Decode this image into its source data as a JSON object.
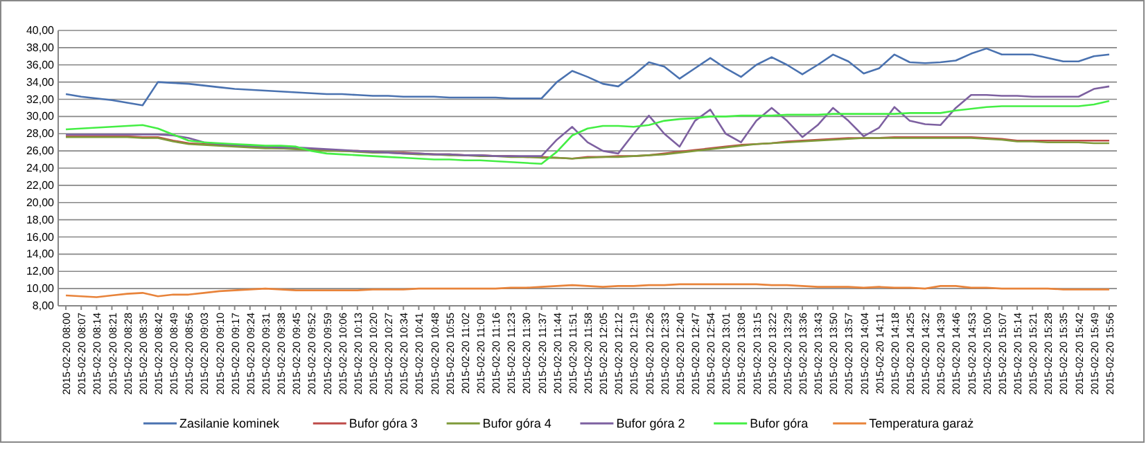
{
  "chart_data": {
    "type": "line",
    "categories": [
      "2015-02-20 08:00",
      "2015-02-20 08:07",
      "2015-02-20 08:14",
      "2015-02-20 08:21",
      "2015-02-20 08:28",
      "2015-02-20 08:35",
      "2015-02-20 08:42",
      "2015-02-20 08:49",
      "2015-02-20 08:56",
      "2015-02-20 09:03",
      "2015-02-20 09:10",
      "2015-02-20 09:17",
      "2015-02-20 09:24",
      "2015-02-20 09:31",
      "2015-02-20 09:38",
      "2015-02-20 09:45",
      "2015-02-20 09:52",
      "2015-02-20 09:59",
      "2015-02-20 10:06",
      "2015-02-20 10:13",
      "2015-02-20 10:20",
      "2015-02-20 10:27",
      "2015-02-20 10:34",
      "2015-02-20 10:41",
      "2015-02-20 10:48",
      "2015-02-20 10:55",
      "2015-02-20 11:02",
      "2015-02-20 11:09",
      "2015-02-20 11:16",
      "2015-02-20 11:23",
      "2015-02-20 11:30",
      "2015-02-20 11:37",
      "2015-02-20 11:44",
      "2015-02-20 11:51",
      "2015-02-20 11:58",
      "2015-02-20 12:05",
      "2015-02-20 12:12",
      "2015-02-20 12:19",
      "2015-02-20 12:26",
      "2015-02-20 12:33",
      "2015-02-20 12:40",
      "2015-02-20 12:47",
      "2015-02-20 12:54",
      "2015-02-20 13:01",
      "2015-02-20 13:08",
      "2015-02-20 13:15",
      "2015-02-20 13:22",
      "2015-02-20 13:29",
      "2015-02-20 13:36",
      "2015-02-20 13:43",
      "2015-02-20 13:50",
      "2015-02-20 13:57",
      "2015-02-20 14:04",
      "2015-02-20 14:11",
      "2015-02-20 14:18",
      "2015-02-20 14:25",
      "2015-02-20 14:32",
      "2015-02-20 14:39",
      "2015-02-20 14:46",
      "2015-02-20 14:53",
      "2015-02-20 15:00",
      "2015-02-20 15:07",
      "2015-02-20 15:14",
      "2015-02-20 15:21",
      "2015-02-20 15:28",
      "2015-02-20 15:35",
      "2015-02-20 15:42",
      "2015-02-20 15:49",
      "2015-02-20 15:56"
    ],
    "series": [
      {
        "name": "Zasilanie kominek",
        "color": "#4a72b0",
        "values": [
          32.6,
          32.3,
          32.1,
          31.9,
          31.6,
          31.3,
          34.0,
          33.9,
          33.8,
          33.6,
          33.4,
          33.2,
          33.1,
          33.0,
          32.9,
          32.8,
          32.7,
          32.6,
          32.6,
          32.5,
          32.4,
          32.4,
          32.3,
          32.3,
          32.3,
          32.2,
          32.2,
          32.2,
          32.2,
          32.1,
          32.1,
          32.1,
          34.0,
          35.3,
          34.6,
          33.8,
          33.5,
          34.8,
          36.3,
          35.8,
          34.4,
          35.6,
          36.8,
          35.6,
          34.6,
          36.0,
          36.9,
          36.0,
          34.9,
          36.0,
          37.2,
          36.4,
          35.0,
          35.6,
          37.2,
          36.3,
          36.2,
          36.3,
          36.5,
          37.3,
          37.9,
          37.2,
          37.2,
          37.2,
          36.8,
          36.4,
          36.4,
          37.0,
          37.2
        ]
      },
      {
        "name": "Bufor góra 3",
        "color": "#be4b48",
        "values": [
          27.7,
          27.7,
          27.7,
          27.7,
          27.7,
          27.6,
          27.6,
          27.2,
          26.9,
          26.8,
          26.7,
          26.6,
          26.5,
          26.4,
          26.3,
          26.3,
          26.2,
          26.1,
          26.0,
          26.0,
          25.9,
          25.8,
          25.8,
          25.7,
          25.6,
          25.6,
          25.5,
          25.5,
          25.4,
          25.4,
          25.3,
          25.3,
          25.2,
          25.1,
          25.3,
          25.3,
          25.4,
          25.4,
          25.5,
          25.7,
          25.9,
          26.1,
          26.3,
          26.5,
          26.7,
          26.8,
          26.9,
          27.1,
          27.2,
          27.3,
          27.4,
          27.5,
          27.5,
          27.5,
          27.6,
          27.6,
          27.6,
          27.6,
          27.6,
          27.6,
          27.5,
          27.4,
          27.2,
          27.2,
          27.2,
          27.2,
          27.2,
          27.2,
          27.2
        ]
      },
      {
        "name": "Bufor góra 4",
        "color": "#7f9a3a",
        "values": [
          27.6,
          27.6,
          27.6,
          27.6,
          27.6,
          27.5,
          27.5,
          27.1,
          26.8,
          26.7,
          26.6,
          26.5,
          26.4,
          26.3,
          26.3,
          26.2,
          26.1,
          26.0,
          26.0,
          25.9,
          25.8,
          25.8,
          25.7,
          25.6,
          25.6,
          25.5,
          25.5,
          25.4,
          25.4,
          25.3,
          25.3,
          25.2,
          25.2,
          25.1,
          25.2,
          25.3,
          25.3,
          25.4,
          25.5,
          25.6,
          25.8,
          26.0,
          26.2,
          26.4,
          26.6,
          26.8,
          26.9,
          27.0,
          27.1,
          27.2,
          27.3,
          27.4,
          27.5,
          27.5,
          27.5,
          27.5,
          27.5,
          27.5,
          27.5,
          27.5,
          27.4,
          27.3,
          27.1,
          27.1,
          27.0,
          27.0,
          27.0,
          26.9,
          26.9
        ]
      },
      {
        "name": "Bufor góra 2",
        "color": "#7d60a0",
        "values": [
          27.9,
          27.9,
          27.9,
          27.9,
          27.9,
          27.9,
          27.9,
          27.8,
          27.5,
          27.0,
          26.8,
          26.7,
          26.6,
          26.5,
          26.4,
          26.4,
          26.3,
          26.2,
          26.1,
          26.0,
          25.9,
          25.8,
          25.7,
          25.7,
          25.6,
          25.6,
          25.5,
          25.5,
          25.4,
          25.4,
          25.4,
          25.4,
          27.3,
          28.8,
          27.0,
          26.0,
          25.7,
          28.0,
          30.1,
          28.0,
          26.5,
          29.5,
          30.8,
          28.0,
          27.0,
          29.5,
          31.0,
          29.5,
          27.6,
          29.0,
          31.0,
          29.5,
          27.7,
          28.7,
          31.1,
          29.5,
          29.1,
          29.0,
          31.0,
          32.5,
          32.5,
          32.4,
          32.4,
          32.3,
          32.3,
          32.3,
          32.3,
          33.2,
          33.5
        ]
      },
      {
        "name": "Bufor góra",
        "color": "#44ee44",
        "values": [
          28.5,
          28.6,
          28.7,
          28.8,
          28.9,
          29.0,
          28.6,
          27.9,
          27.2,
          27.0,
          26.9,
          26.8,
          26.7,
          26.6,
          26.6,
          26.5,
          26.0,
          25.7,
          25.6,
          25.5,
          25.4,
          25.3,
          25.2,
          25.1,
          25.0,
          25.0,
          24.9,
          24.9,
          24.8,
          24.7,
          24.6,
          24.5,
          25.9,
          27.8,
          28.6,
          28.9,
          28.9,
          28.8,
          29.0,
          29.5,
          29.7,
          29.8,
          30.0,
          30.0,
          30.1,
          30.1,
          30.1,
          30.2,
          30.2,
          30.2,
          30.3,
          30.3,
          30.3,
          30.3,
          30.3,
          30.4,
          30.4,
          30.4,
          30.7,
          30.9,
          31.1,
          31.2,
          31.2,
          31.2,
          31.2,
          31.2,
          31.2,
          31.4,
          31.8
        ]
      },
      {
        "name": "Temperatura garaż",
        "color": "#e8833a",
        "values": [
          9.2,
          9.1,
          9.0,
          9.2,
          9.4,
          9.5,
          9.1,
          9.3,
          9.3,
          9.5,
          9.7,
          9.8,
          9.9,
          10.0,
          9.9,
          9.8,
          9.8,
          9.8,
          9.8,
          9.8,
          9.9,
          9.9,
          9.9,
          10.0,
          10.0,
          10.0,
          10.0,
          10.0,
          10.0,
          10.1,
          10.1,
          10.2,
          10.3,
          10.4,
          10.3,
          10.2,
          10.3,
          10.3,
          10.4,
          10.4,
          10.5,
          10.5,
          10.5,
          10.5,
          10.5,
          10.5,
          10.4,
          10.4,
          10.3,
          10.2,
          10.2,
          10.2,
          10.1,
          10.2,
          10.1,
          10.1,
          10.0,
          10.3,
          10.3,
          10.1,
          10.1,
          10.0,
          10.0,
          10.0,
          10.0,
          9.9,
          9.9,
          9.9,
          9.9
        ]
      }
    ],
    "ylim": [
      8,
      40
    ],
    "yticks": [
      {
        "value": 8,
        "label": "8,00"
      },
      {
        "value": 10,
        "label": "10,00"
      },
      {
        "value": 12,
        "label": "12,00"
      },
      {
        "value": 14,
        "label": "14,00"
      },
      {
        "value": 16,
        "label": "16,00"
      },
      {
        "value": 18,
        "label": "18,00"
      },
      {
        "value": 20,
        "label": "20,00"
      },
      {
        "value": 22,
        "label": "22,00"
      },
      {
        "value": 24,
        "label": "24,00"
      },
      {
        "value": 26,
        "label": "26,00"
      },
      {
        "value": 28,
        "label": "28,00"
      },
      {
        "value": 30,
        "label": "30,00"
      },
      {
        "value": 32,
        "label": "32,00"
      },
      {
        "value": 34,
        "label": "34,00"
      },
      {
        "value": 36,
        "label": "36,00"
      },
      {
        "value": 38,
        "label": "38,00"
      },
      {
        "value": 40,
        "label": "40,00"
      }
    ],
    "grid": "y",
    "legend": "bottom",
    "marker": "none",
    "line_style": "solid"
  }
}
